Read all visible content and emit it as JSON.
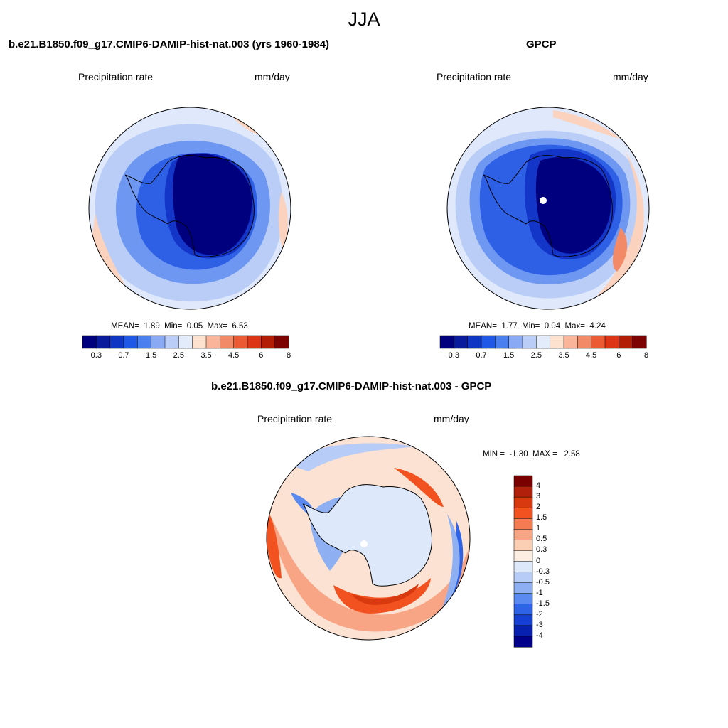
{
  "season": "JJA",
  "units_label": "mm/day",
  "variable_label": "Precipitation rate",
  "panels": {
    "model": {
      "title": "b.e21.B1850.f09_g17.CMIP6-DAMIP-hist-nat.003 (yrs 1960-1984)",
      "stats": {
        "mean_label": "MEAN=",
        "mean": "1.89",
        "min_label": "Min=",
        "min": "0.05",
        "max_label": "Max=",
        "max": "6.53"
      }
    },
    "obs": {
      "title": "GPCP",
      "stats": {
        "mean_label": "MEAN=",
        "mean": "1.77",
        "min_label": "Min=",
        "min": "0.04",
        "max_label": "Max=",
        "max": "4.24"
      }
    },
    "diff": {
      "title": "b.e21.B1850.f09_g17.CMIP6-DAMIP-hist-nat.003 - GPCP",
      "stats": {
        "min_label": "MIN =",
        "min": "-1.30",
        "max_label": "MAX =",
        "max": "2.58"
      }
    }
  },
  "abs_colorbar": {
    "colors": [
      "#00007f",
      "#0a1a9c",
      "#0f35c4",
      "#1f57e6",
      "#4a7ff0",
      "#8aa9f4",
      "#b9cdf7",
      "#e2ecfb",
      "#fde3cf",
      "#f9b49a",
      "#f28a68",
      "#ec5a34",
      "#dc3414",
      "#b31d06",
      "#7d0303"
    ],
    "tick_labels": [
      "0.3",
      "0.7",
      "1.5",
      "2.5",
      "3.5",
      "4.5",
      "6",
      "8"
    ]
  },
  "diff_colorbar": {
    "colors": [
      "#7a0000",
      "#b0200a",
      "#d8390f",
      "#f2521f",
      "#f57c52",
      "#f7a585",
      "#fbcfb4",
      "#fdeee2",
      "#dde8fa",
      "#b7cdf7",
      "#8eb0f3",
      "#5a8af0",
      "#2e63e8",
      "#1640d2",
      "#0820b0",
      "#00008a"
    ],
    "tick_labels": [
      "4",
      "3",
      "2",
      "1.5",
      "1",
      "0.5",
      "0.3",
      "0",
      "-0.3",
      "-0.5",
      "-1",
      "-1.5",
      "-2",
      "-3",
      "-4"
    ]
  },
  "color_ramp": {
    "abs": [
      "#00007f",
      "#1335c8",
      "#2e60e6",
      "#6e97f2",
      "#b9cdf7",
      "#e6eefb",
      "#fbd2bd",
      "#f28a68",
      "#dc3414"
    ],
    "diff_neg": [
      "#1640d2",
      "#5a8af0",
      "#b7cdf7",
      "#dde8fa"
    ],
    "diff_pos": [
      "#fbcfb4",
      "#f7a585",
      "#f2521f",
      "#d8390f"
    ]
  }
}
